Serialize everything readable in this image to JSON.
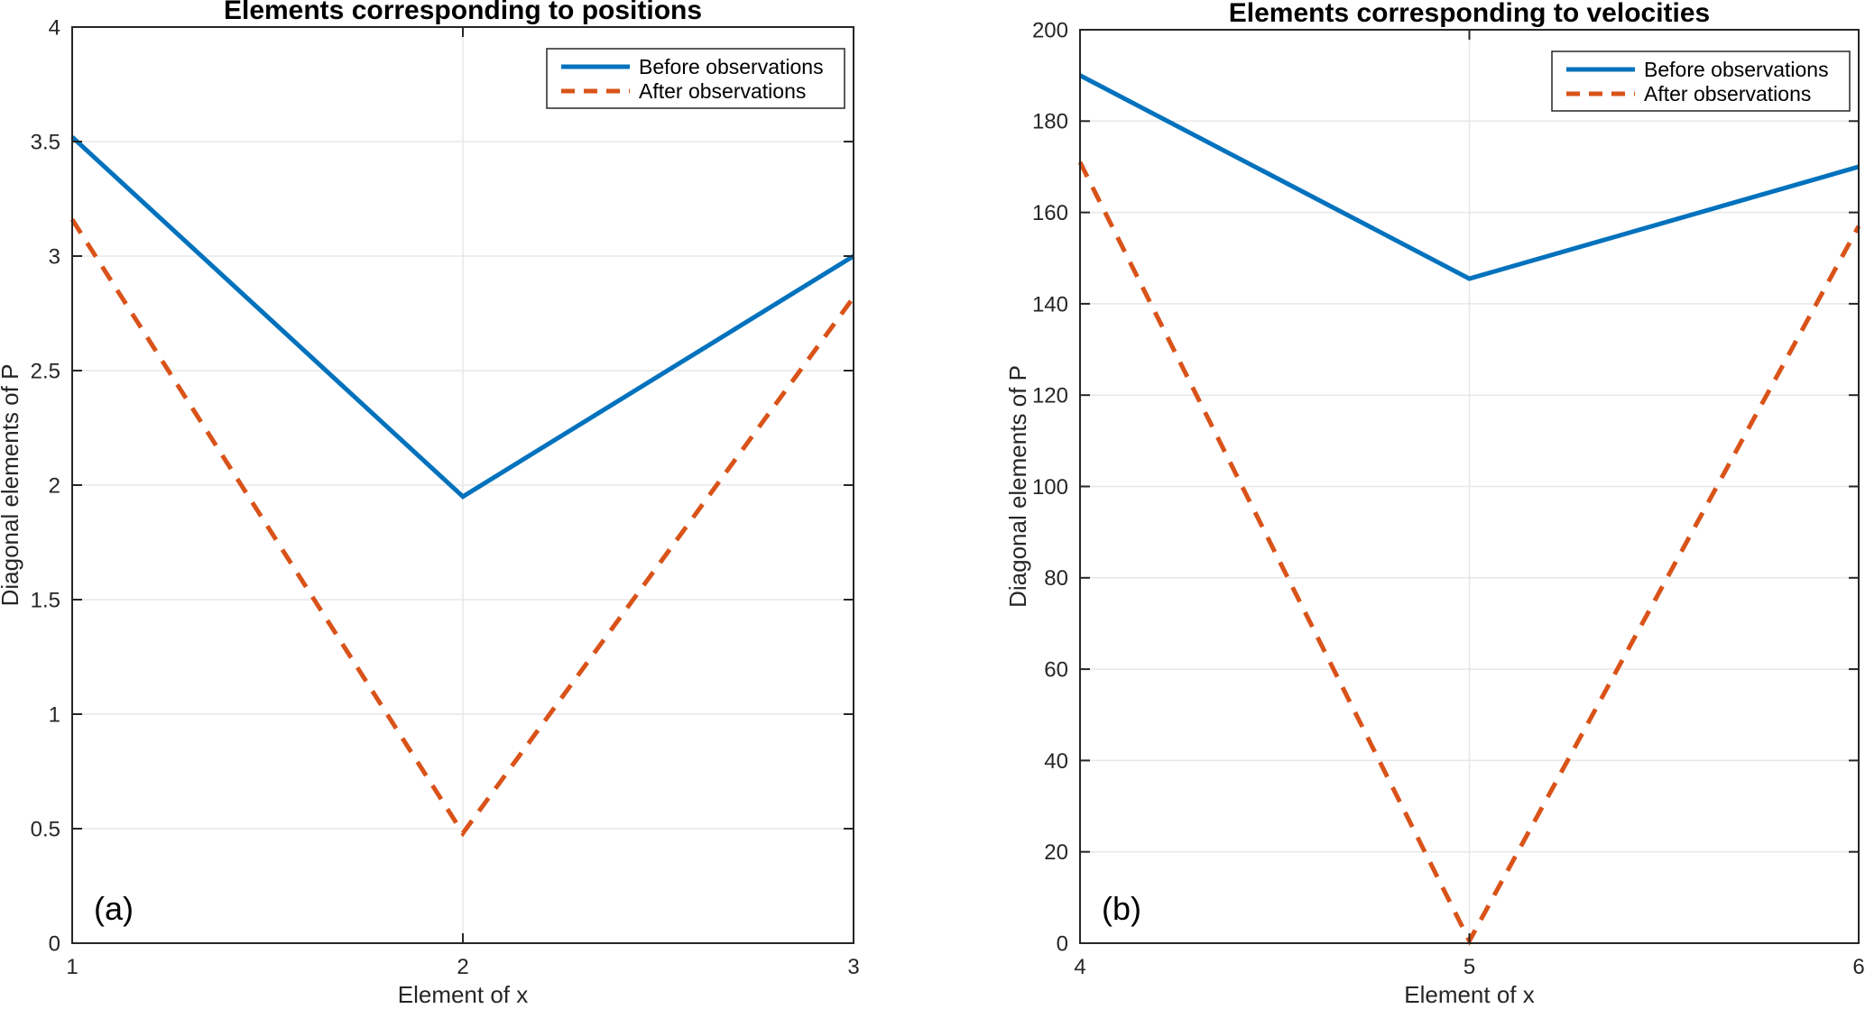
{
  "figure": {
    "background": "#ffffff",
    "axis_color": "#262626",
    "grid_color": "#e7e7e7",
    "text_color": "#000000",
    "legend": {
      "items": [
        {
          "label": "Before observations",
          "style": "solid",
          "color": "#0072BD"
        },
        {
          "label": "After observations",
          "style": "dashed",
          "color": "#D95319"
        }
      ]
    }
  },
  "chart_data": [
    {
      "id": "positions",
      "type": "line",
      "title": "Elements corresponding to positions",
      "xlabel": "Element of x",
      "ylabel": "Diagonal elements of P",
      "annotation": "(a)",
      "x": [
        1,
        2,
        3
      ],
      "xlim": [
        1,
        3
      ],
      "ylim": [
        0,
        4
      ],
      "xticks": [
        1,
        2,
        3
      ],
      "yticks": [
        0,
        0.5,
        1,
        1.5,
        2,
        2.5,
        3,
        3.5,
        4
      ],
      "grid": true,
      "legend_position": "top-right",
      "series": [
        {
          "name": "Before observations",
          "color": "#0072BD",
          "style": "solid",
          "values": [
            3.52,
            1.95,
            3.0
          ]
        },
        {
          "name": "After observations",
          "color": "#D95319",
          "style": "dashed",
          "values": [
            3.16,
            0.48,
            2.82
          ]
        }
      ]
    },
    {
      "id": "velocities",
      "type": "line",
      "title": "Elements corresponding to velocities",
      "xlabel": "Element of x",
      "ylabel": "Diagonal elements of P",
      "annotation": "(b)",
      "x": [
        4,
        5,
        6
      ],
      "xlim": [
        4,
        6
      ],
      "ylim": [
        0,
        200
      ],
      "xticks": [
        4,
        5,
        6
      ],
      "yticks": [
        0,
        20,
        40,
        60,
        80,
        100,
        120,
        140,
        160,
        180,
        200
      ],
      "grid": true,
      "legend_position": "top-right",
      "series": [
        {
          "name": "Before observations",
          "color": "#0072BD",
          "style": "solid",
          "values": [
            190,
            145.5,
            170
          ]
        },
        {
          "name": "After observations",
          "color": "#D95319",
          "style": "dashed",
          "values": [
            171,
            0.5,
            157
          ]
        }
      ]
    }
  ]
}
